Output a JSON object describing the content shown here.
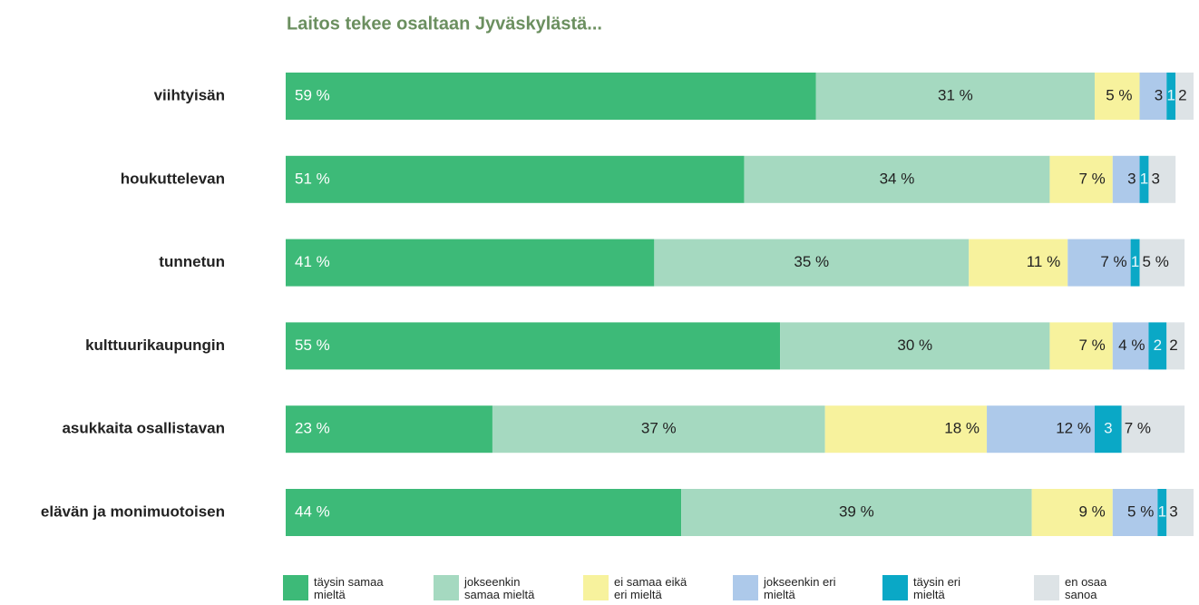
{
  "chart_data": {
    "type": "stacked_bar_horizontal",
    "title": "Laitos tekee osaltaan Jyväskylästä...",
    "categories": [
      "viihtyisän",
      "houkuttelevan",
      "tunnetun",
      "kulttuurikaupungin",
      "asukkaita osallistavan",
      "elävän ja monimuotoisen"
    ],
    "xlim": [
      0,
      101
    ],
    "series": [
      {
        "name": "täysin samaa mieltä",
        "color": "#3dba78",
        "values": [
          59,
          51,
          41,
          55,
          23,
          44
        ],
        "value_labels": [
          "59 %",
          "51 %",
          "41 %",
          "55 %",
          "23 %",
          "44 %"
        ]
      },
      {
        "name": "jokseenkin samaa mieltä",
        "color": "#a5d9c0",
        "values": [
          31,
          34,
          35,
          30,
          37,
          39
        ],
        "value_labels": [
          "31 %",
          "34 %",
          "35 %",
          "30 %",
          "37 %",
          "39 %"
        ]
      },
      {
        "name": "ei samaa eikä eri mieltä",
        "color": "#f7f29d",
        "values": [
          5,
          7,
          11,
          7,
          18,
          9
        ],
        "value_labels": [
          "5 %",
          "7 %",
          "11 %",
          "7 %",
          "18 %",
          "9 %"
        ]
      },
      {
        "name": "jokseenkin eri mieltä",
        "color": "#adc9ea",
        "values": [
          3,
          3,
          7,
          4,
          12,
          5
        ],
        "value_labels": [
          "3",
          "3",
          "7 %",
          "4 %",
          "12 %",
          "5 %"
        ]
      },
      {
        "name": "täysin eri mieltä",
        "color": "#0aa8c6",
        "values": [
          1,
          1,
          1,
          2,
          3,
          1
        ],
        "value_labels": [
          "1",
          "1",
          "1",
          "2",
          "3",
          "1"
        ]
      },
      {
        "name": "en osaa sanoa",
        "color": "#dde3e6",
        "values": [
          2,
          3,
          5,
          2,
          7,
          3
        ],
        "value_labels": [
          "2",
          "3",
          "5 %",
          "2",
          "7 %",
          "3"
        ]
      }
    ]
  }
}
